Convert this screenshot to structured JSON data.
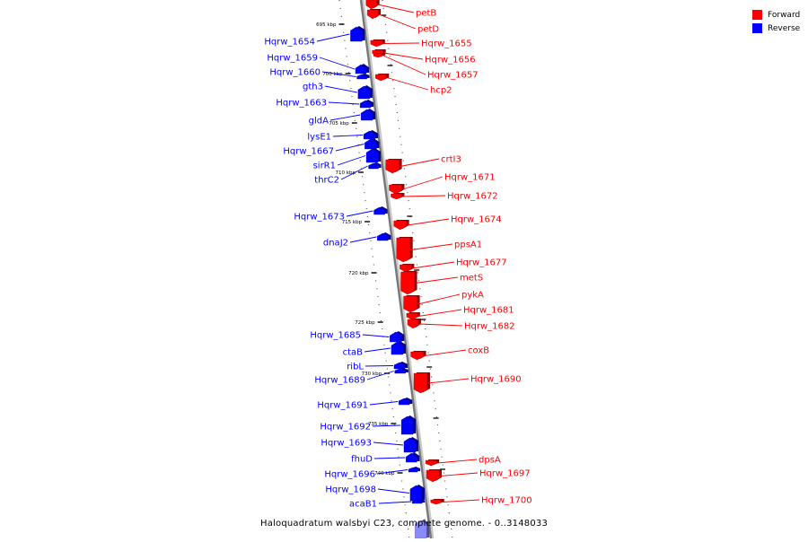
{
  "legend": {
    "forward_label": "Forward",
    "reverse_label": "Reverse",
    "forward_color": "#ff0000",
    "reverse_color": "#0000ff"
  },
  "caption": "Haloquadratum walsbyi C23, complete genome. - 0..3148033",
  "ticks": [
    "695 kbp",
    "700 kbp",
    "705 kbp",
    "710 kbp",
    "715 kbp",
    "720 kbp",
    "725 kbp",
    "730 kbp",
    "735 kbp",
    "740 kbp"
  ],
  "forward_genes": [
    "petB",
    "petD",
    "Hqrw_1655",
    "Hqrw_1656",
    "Hqrw_1657",
    "hcp2",
    "crtI3",
    "Hqrw_1671",
    "Hqrw_1672",
    "Hqrw_1674",
    "ppsA1",
    "Hqrw_1677",
    "metS",
    "pykA",
    "Hqrw_1681",
    "Hqrw_1682",
    "coxB",
    "Hqrw_1690",
    "dpsA",
    "Hqrw_1697",
    "Hqrw_1700"
  ],
  "reverse_genes": [
    "Hqrw_1654",
    "Hqrw_1659",
    "Hqrw_1660",
    "gth3",
    "Hqrw_1663",
    "gldA",
    "lysE1",
    "Hqrw_1667",
    "sirR1",
    "thrC2",
    "Hqrw_1673",
    "dnaJ2",
    "Hqrw_1685",
    "ctaB",
    "ribL",
    "Hqrw_1689",
    "Hqrw_1691",
    "Hqrw_1692",
    "Hqrw_1693",
    "fhuD",
    "Hqrw_1696",
    "Hqrw_1698",
    "acaB1"
  ]
}
